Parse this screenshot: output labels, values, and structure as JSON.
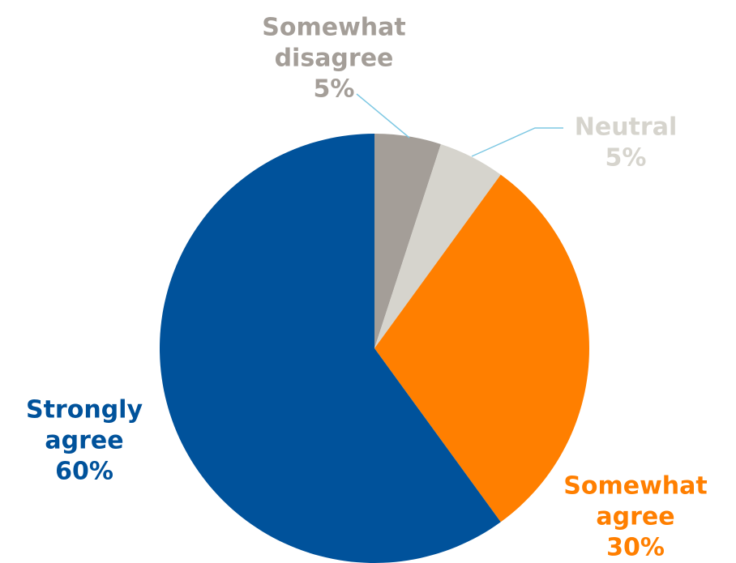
{
  "chart_data": {
    "type": "pie",
    "title": "",
    "start_angle_deg": 0,
    "direction": "clockwise",
    "slices": [
      {
        "name": "Somewhat disagree",
        "value": 5,
        "label_lines": [
          "Somewhat",
          "disagree",
          "5%"
        ],
        "color": "#a49e98",
        "label_color": "#a49e98",
        "leader_line": true,
        "leader_color": "#7ec8e3"
      },
      {
        "name": "Neutral",
        "value": 5,
        "label_lines": [
          "Neutral",
          "5%"
        ],
        "color": "#d6d4cd",
        "label_color": "#d6d4cd",
        "leader_line": true,
        "leader_color": "#7ec8e3"
      },
      {
        "name": "Somewhat agree",
        "value": 30,
        "label_lines": [
          "Somewhat",
          "agree",
          "30%"
        ],
        "color": "#ff7f00",
        "label_color": "#ff7f00",
        "leader_line": false
      },
      {
        "name": "Strongly agree",
        "value": 60,
        "label_lines": [
          "Strongly",
          "agree",
          "60%"
        ],
        "color": "#00529b",
        "label_color": "#00529b",
        "leader_line": false
      }
    ]
  }
}
